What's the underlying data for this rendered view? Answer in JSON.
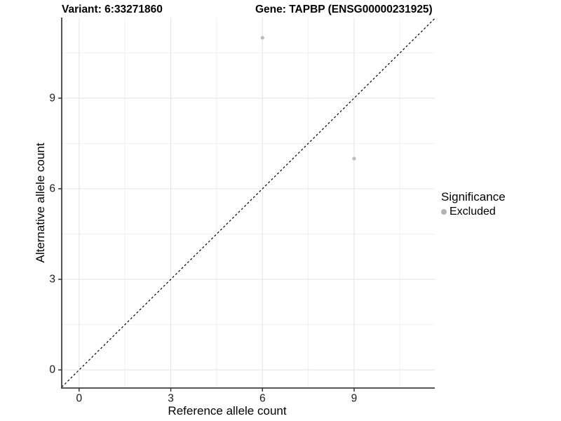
{
  "chart_data": {
    "type": "scatter",
    "title_variant": "Variant: 6:33271860",
    "title_gene": "Gene: TAPBP (ENSG00000231925)",
    "xlabel": "Reference allele count",
    "ylabel": "Alternative allele count",
    "xlim": [
      -0.57,
      11.64
    ],
    "ylim": [
      -0.6,
      11.67
    ],
    "x_ticks": [
      0,
      3,
      6,
      9
    ],
    "y_ticks": [
      0,
      3,
      6,
      9
    ],
    "x_minor_ticks": [
      1.5,
      4.5,
      7.5,
      10.5
    ],
    "y_minor_ticks": [
      1.5,
      4.5,
      7.5,
      10.5
    ],
    "grid": true,
    "series": [
      {
        "name": "Excluded",
        "points": [
          [
            6,
            11
          ],
          [
            9,
            7
          ]
        ],
        "color": "#bcbcbc",
        "point_radius": 2.6
      }
    ],
    "reference_line": {
      "type": "identity y=x",
      "style": "dashed",
      "color": "#000000"
    },
    "legend": {
      "title": "Significance",
      "position": "right",
      "entries": [
        {
          "label": "Excluded",
          "color": "#b3b3b3"
        }
      ]
    },
    "colors": {
      "grid_major": "#e4e4e4",
      "grid_minor": "#f1f1f1",
      "axis_line": "#404040",
      "tick_mark": "#333333"
    }
  }
}
